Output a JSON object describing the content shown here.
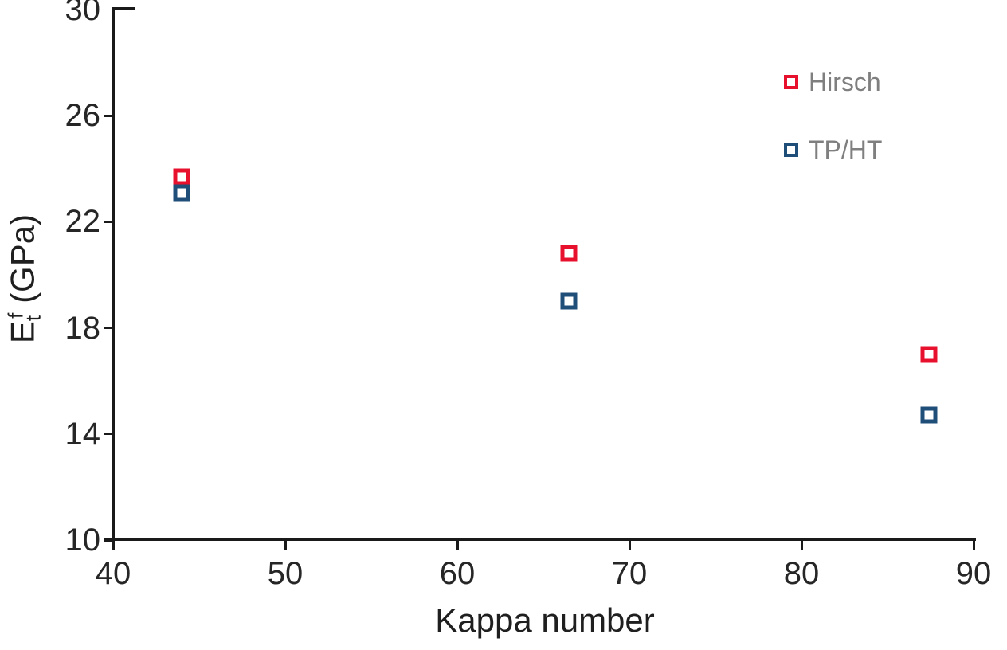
{
  "chart": {
    "x_title": "Kappa number",
    "y_title": {
      "base": "E",
      "sub": "t",
      "sup": "f",
      "unit": " (GPa)"
    },
    "colors": {
      "hirsch_red": "#E8112D",
      "tpht_blue": "#1F4E79",
      "axis_line": "#1A1A1A",
      "tick_text": "#262626",
      "legend_text": "#7F7F7F",
      "background": "#FFFFFF"
    }
  },
  "legend": {
    "items": [
      {
        "label": "Hirsch",
        "color": "#E8112D"
      },
      {
        "label": "TP/HT",
        "color": "#1F4E79"
      }
    ]
  },
  "chart_data": {
    "type": "scatter",
    "title": "",
    "xlabel": "Kappa number",
    "ylabel": "Et^f (GPa)",
    "xlim": [
      40,
      90
    ],
    "ylim": [
      10,
      30
    ],
    "x_ticks": [
      40,
      50,
      60,
      70,
      80,
      90
    ],
    "y_ticks": [
      10,
      14,
      18,
      22,
      26,
      30
    ],
    "grid": false,
    "legend_position": "upper-right",
    "marker_style": "open-square",
    "x": [
      44,
      66.5,
      87.4
    ],
    "series": [
      {
        "name": "Hirsch",
        "color": "#E8112D",
        "values": [
          23.7,
          20.8,
          17.0
        ]
      },
      {
        "name": "TP/HT",
        "color": "#1F4E79",
        "values": [
          23.1,
          19.0,
          14.7
        ]
      }
    ]
  }
}
